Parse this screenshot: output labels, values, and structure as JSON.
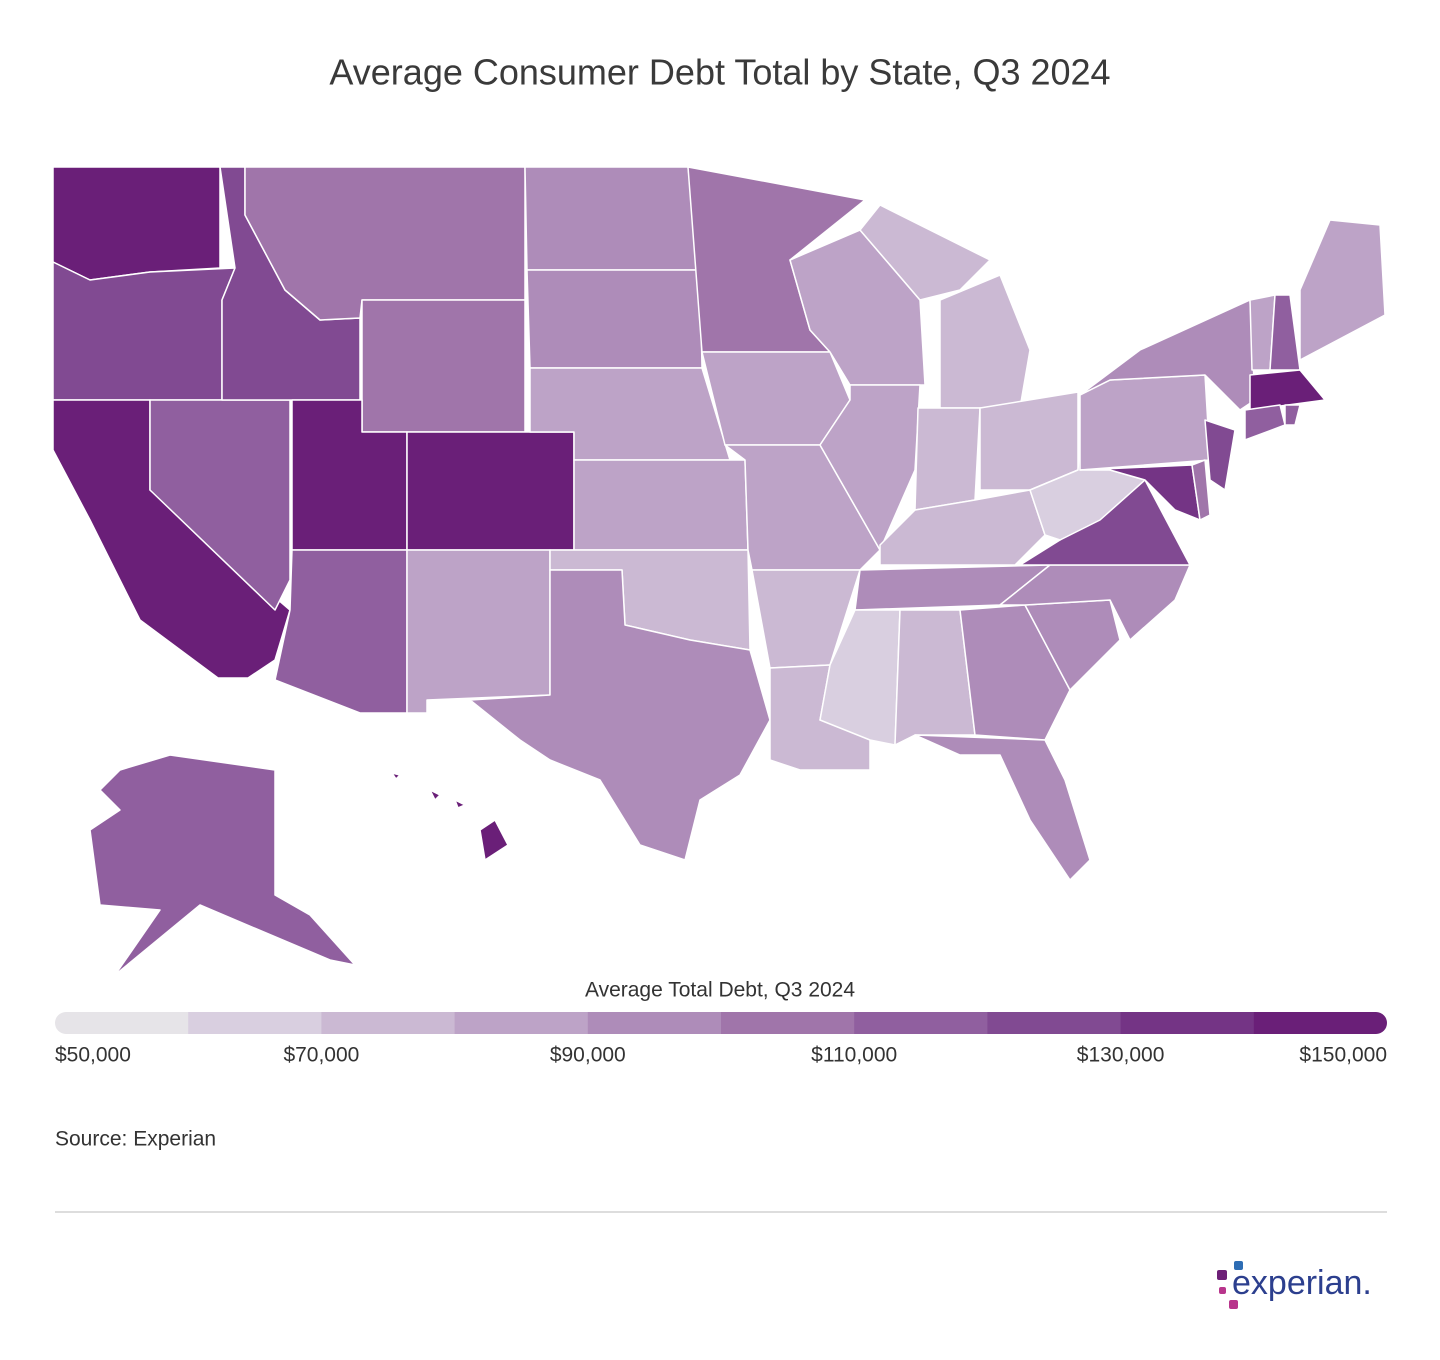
{
  "chart_data": {
    "type": "choropleth",
    "title": "Average Consumer Debt Total by State, Q3 2024",
    "values": [
      145000,
      125000,
      145000,
      115000,
      125000,
      105000,
      105000,
      150000,
      150000,
      115000,
      85000,
      95000,
      95000,
      85000,
      85000,
      75000,
      95000,
      105000,
      85000,
      85000,
      75000,
      70000,
      85000,
      85000,
      75000,
      75000,
      75000,
      75000,
      95000,
      65000,
      75000,
      95000,
      95000,
      95000,
      95000,
      125000,
      65000,
      85000,
      95000,
      135000,
      105000,
      125000,
      85000,
      115000,
      85000,
      145000,
      115000,
      115000,
      115000,
      145000
    ],
    "legend": {
      "title": "Average Total Debt, Q3 2024",
      "range": [
        50000,
        150000
      ],
      "step": 10000,
      "colors": [
        "#e6e4e8",
        "#d9cfe0",
        "#cbb9d3",
        "#bda3c7",
        "#ae8cb9",
        "#a075aa",
        "#905f9f",
        "#814a92",
        "#743485",
        "#6a1f78"
      ],
      "ticks": [
        {
          "value": 50000,
          "label": "$50,000"
        },
        {
          "value": 70000,
          "label": "$70,000"
        },
        {
          "value": 90000,
          "label": "$90,000"
        },
        {
          "value": 110000,
          "label": "$110,000"
        },
        {
          "value": 130000,
          "label": "$130,000"
        },
        {
          "value": 150000,
          "label": "$150,000"
        }
      ]
    },
    "source": "Source: Experian",
    "logo": "experian."
  }
}
